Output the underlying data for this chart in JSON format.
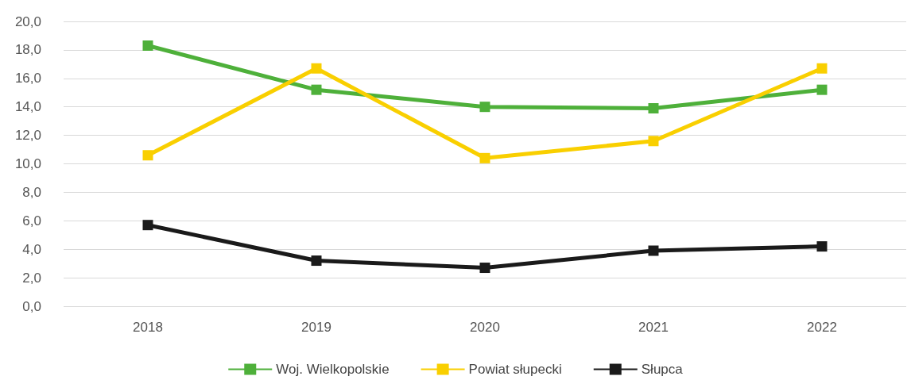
{
  "chart_data": {
    "type": "line",
    "categories": [
      "2018",
      "2019",
      "2020",
      "2021",
      "2022"
    ],
    "series": [
      {
        "name": "Woj. Wielkopolskie",
        "color": "#4eb03a",
        "values": [
          18.3,
          15.2,
          14.0,
          13.9,
          15.2
        ]
      },
      {
        "name": "Powiat słupecki",
        "color": "#f9cf00",
        "values": [
          10.6,
          16.7,
          10.4,
          11.6,
          16.7
        ]
      },
      {
        "name": "Słupca",
        "color": "#1a1a1a",
        "values": [
          5.7,
          3.2,
          2.7,
          3.9,
          4.2
        ]
      }
    ],
    "ylim": [
      0,
      20
    ],
    "yticks": [
      {
        "value": 0,
        "label": "0,0"
      },
      {
        "value": 2,
        "label": "2,0"
      },
      {
        "value": 4,
        "label": "4,0"
      },
      {
        "value": 6,
        "label": "6,0"
      },
      {
        "value": 8,
        "label": "8,0"
      },
      {
        "value": 10,
        "label": "10,0"
      },
      {
        "value": 12,
        "label": "12,0"
      },
      {
        "value": 14,
        "label": "14,0"
      },
      {
        "value": 16,
        "label": "16,0"
      },
      {
        "value": 18,
        "label": "18,0"
      },
      {
        "value": 20,
        "label": "20,0"
      }
    ],
    "grid": "y",
    "legend": "bottom",
    "marker": "square",
    "line_style": "solid"
  }
}
